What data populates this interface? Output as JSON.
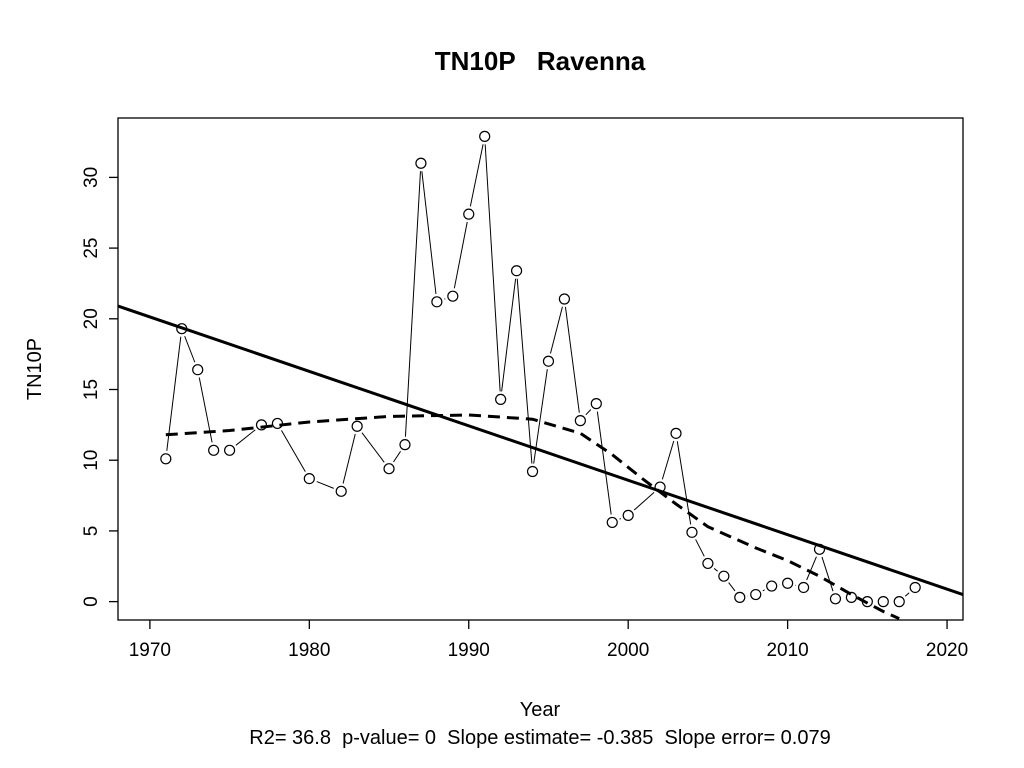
{
  "chart_data": {
    "type": "line",
    "title": "TN10P   Ravenna",
    "xlabel": "Year",
    "ylabel": "TN10P",
    "footer": "R2= 36.8  p-value= 0  Slope estimate= -0.385  Slope error= 0.079",
    "xlim": [
      1968,
      2021
    ],
    "ylim": [
      -1.3,
      34.2
    ],
    "x_ticks": [
      1970,
      1980,
      1990,
      2000,
      2010,
      2020
    ],
    "y_ticks": [
      0,
      5,
      10,
      15,
      20,
      25,
      30
    ],
    "grid": false,
    "legend": "none",
    "series": [
      {
        "style": "points-and-lines",
        "x": [
          1971,
          1972,
          1973,
          1974,
          1975,
          1977,
          1978,
          1980,
          1982,
          1983,
          1985,
          1986,
          1987,
          1988,
          1989,
          1990,
          1991,
          1992,
          1993,
          1994,
          1995,
          1996,
          1997,
          1998,
          1999,
          2000,
          2002,
          2003,
          2004,
          2005,
          2006,
          2007,
          2008,
          2009,
          2010,
          2011,
          2012,
          2013,
          2014,
          2015,
          2016,
          2017,
          2018
        ],
        "y": [
          10.1,
          19.3,
          16.4,
          10.7,
          10.7,
          12.5,
          12.6,
          8.7,
          7.8,
          12.4,
          9.4,
          11.1,
          31.0,
          21.2,
          21.6,
          27.4,
          32.9,
          14.3,
          23.4,
          9.2,
          17.0,
          21.4,
          12.8,
          14.0,
          5.6,
          6.1,
          8.1,
          11.9,
          4.9,
          2.7,
          1.8,
          0.3,
          0.5,
          1.1,
          1.3,
          1.0,
          3.7,
          0.2,
          0.3,
          0.0,
          0.0,
          0.0,
          1.0
        ]
      },
      {
        "style": "linear-fit",
        "x": [
          1968,
          2021
        ],
        "y": [
          20.9,
          0.5
        ]
      },
      {
        "style": "smooth-fit-dashed",
        "x": [
          1971,
          1975,
          1980,
          1985,
          1990,
          1994,
          1997,
          1999,
          2001,
          2003,
          2005,
          2008,
          2010,
          2012,
          2014,
          2016,
          2017
        ],
        "y": [
          11.8,
          12.1,
          12.7,
          13.1,
          13.2,
          12.9,
          11.9,
          10.4,
          8.6,
          6.9,
          5.3,
          3.8,
          2.9,
          1.8,
          0.5,
          -0.7,
          -1.2
        ]
      }
    ]
  }
}
